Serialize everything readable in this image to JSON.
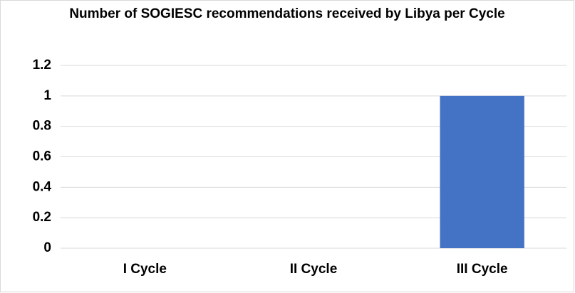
{
  "chart_data": {
    "type": "bar",
    "title": "Number of SOGIESC recommendations received by Libya per Cycle",
    "categories": [
      "I Cycle",
      "II Cycle",
      "III Cycle"
    ],
    "values": [
      0,
      0,
      1
    ],
    "color": "#4472c4",
    "ylim": [
      0,
      1.2
    ],
    "yticks": [
      0,
      0.2,
      0.4,
      0.6,
      0.8,
      1,
      1.2
    ],
    "grid": true
  }
}
